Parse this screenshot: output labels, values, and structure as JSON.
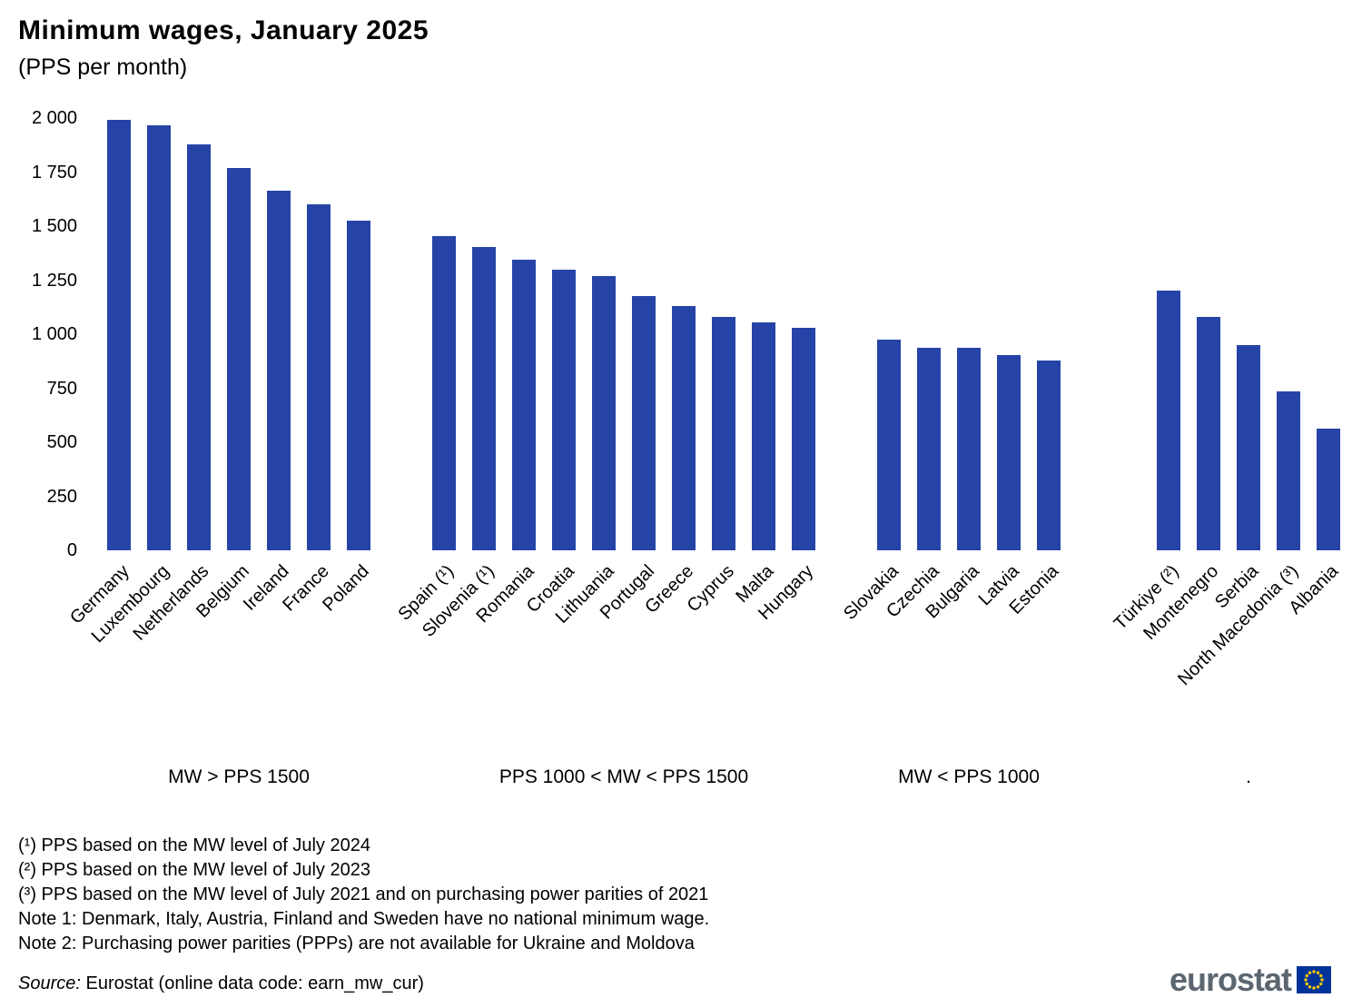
{
  "title": "Minimum wages, January 2025",
  "subtitle": "(PPS per month)",
  "chart_data": {
    "type": "bar",
    "title": "Minimum wages, January 2025",
    "subtitle": "(PPS per month)",
    "ylabel": "",
    "xlabel": "",
    "ylim": [
      0,
      2000
    ],
    "grid": false,
    "legend": "none",
    "bar_color": "#2644A7",
    "yticks": [
      {
        "value": 0,
        "label": "0"
      },
      {
        "value": 250,
        "label": "250"
      },
      {
        "value": 500,
        "label": "500"
      },
      {
        "value": 750,
        "label": "750"
      },
      {
        "value": 1000,
        "label": "1 000"
      },
      {
        "value": 1250,
        "label": "1 250"
      },
      {
        "value": 1500,
        "label": "1 500"
      },
      {
        "value": 1750,
        "label": "1 750"
      },
      {
        "value": 2000,
        "label": "2 000"
      }
    ],
    "groups": [
      {
        "label": "MW > PPS 1500",
        "categories": [
          "Germany",
          "Luxembourg",
          "Netherlands",
          "Belgium",
          "Ireland",
          "France",
          "Poland"
        ],
        "values": [
          1990,
          1965,
          1880,
          1770,
          1665,
          1600,
          1525
        ]
      },
      {
        "label": "PPS 1000 < MW < PPS 1500",
        "categories": [
          "Spain (¹)",
          "Slovenia (¹)",
          "Romania",
          "Croatia",
          "Lithuania",
          "Portugal",
          "Greece",
          "Cyprus",
          "Malta",
          "Hungary"
        ],
        "values": [
          1455,
          1405,
          1345,
          1300,
          1270,
          1175,
          1130,
          1080,
          1055,
          1030
        ]
      },
      {
        "label": "MW < PPS 1000",
        "categories": [
          "Slovakia",
          "Czechia",
          "Bulgaria",
          "Latvia",
          "Estonia"
        ],
        "values": [
          975,
          935,
          935,
          905,
          880
        ]
      },
      {
        "label": ".",
        "categories": [
          "Türkiye (²)",
          "Montenegro",
          "Serbia",
          "North Macedonia (³)",
          "Albania"
        ],
        "values": [
          1200,
          1080,
          950,
          735,
          565
        ]
      }
    ]
  },
  "footnotes": [
    "(¹) PPS based on the MW level of July 2024",
    "(²) PPS based on the MW level of July 2023",
    "(³) PPS based on the MW level of July 2021 and on purchasing power parities of 2021",
    "Note 1: Denmark, Italy, Austria, Finland and Sweden have no national minimum wage.",
    "Note 2: Purchasing power parities (PPPs) are not available for Ukraine and Moldova"
  ],
  "source": {
    "label": "Source:",
    "text": " Eurostat (online data code: earn_mw_cur)"
  },
  "logo": {
    "text": "eurostat",
    "flag_blue": "#003399",
    "star_yellow": "#FFCC00",
    "wordmark_gray": "#5c6670"
  }
}
